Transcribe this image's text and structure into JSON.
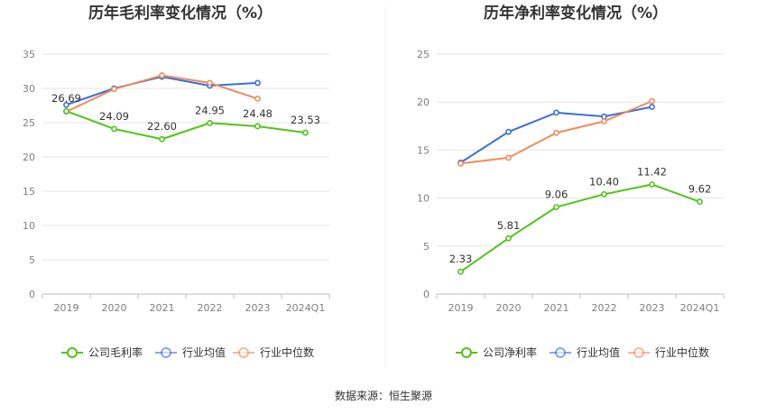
{
  "source_text": "数据来源：恒生聚源",
  "chart_data": [
    {
      "type": "line",
      "title": "历年毛利率变化情况（%）",
      "categories": [
        "2019",
        "2020",
        "2021",
        "2022",
        "2023",
        "2024Q1"
      ],
      "ylim": [
        0,
        35
      ],
      "yticks": [
        0,
        5,
        10,
        15,
        20,
        25,
        30,
        35
      ],
      "grid": true,
      "legend_position": "bottom",
      "series": [
        {
          "name": "公司毛利率",
          "color": "#52c41a",
          "values": [
            26.69,
            24.09,
            22.6,
            24.95,
            24.48,
            23.53
          ],
          "labels": [
            "26.69",
            "24.09",
            "22.60",
            "24.95",
            "24.48",
            "23.53"
          ]
        },
        {
          "name": "行业均值",
          "color": "#3a6fd8",
          "values": [
            27.6,
            30.0,
            31.7,
            30.4,
            30.8,
            null
          ]
        },
        {
          "name": "行业中位数",
          "color": "#f08a5d",
          "values": [
            26.6,
            29.9,
            31.9,
            30.8,
            28.5,
            null
          ]
        }
      ]
    },
    {
      "type": "line",
      "title": "历年净利率变化情况（%）",
      "categories": [
        "2019",
        "2020",
        "2021",
        "2022",
        "2023",
        "2024Q1"
      ],
      "ylim": [
        0,
        25
      ],
      "yticks": [
        0,
        5,
        10,
        15,
        20,
        25
      ],
      "grid": true,
      "legend_position": "bottom",
      "series": [
        {
          "name": "公司净利率",
          "color": "#52c41a",
          "values": [
            2.33,
            5.81,
            9.06,
            10.4,
            11.42,
            9.62
          ],
          "labels": [
            "2.33",
            "5.81",
            "9.06",
            "10.40",
            "11.42",
            "9.62"
          ]
        },
        {
          "name": "行业均值",
          "color": "#3a6fd8",
          "values": [
            13.7,
            16.9,
            18.9,
            18.5,
            19.5,
            null
          ]
        },
        {
          "name": "行业中位数",
          "color": "#f08a5d",
          "values": [
            13.6,
            14.2,
            16.8,
            18.0,
            20.1,
            null
          ]
        }
      ]
    }
  ]
}
